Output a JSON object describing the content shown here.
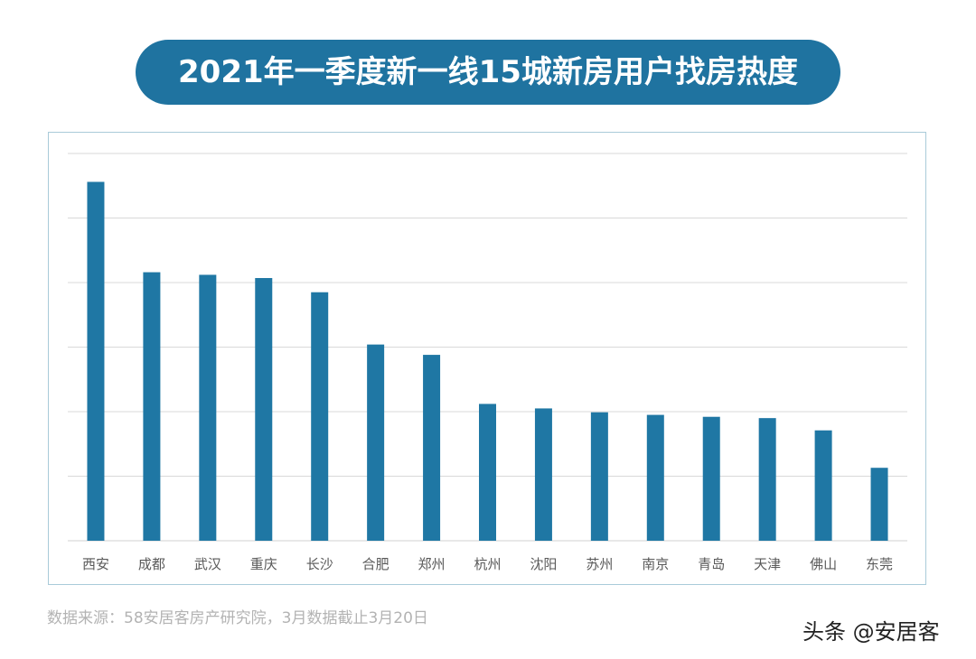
{
  "title": "2021年一季度新一线15城新房用户找房热度",
  "source_note": "数据来源：58安居客房产研究院，3月数据截止3月20日",
  "watermark": "头条 @安居客",
  "colors": {
    "title_background": "#1f73a0",
    "bar": "#1f77a4",
    "gridline": "#d9d9d9",
    "frame_border": "#a9cbd9"
  },
  "chart_data": {
    "type": "bar",
    "title": "2021年一季度新一线15城新房用户找房热度",
    "xlabel": "",
    "ylabel": "",
    "y_tick_labels_shown": false,
    "grid": true,
    "gridline_count": 6,
    "legend": "none",
    "ylim": [
      0,
      6
    ],
    "categories": [
      "西安",
      "成都",
      "武汉",
      "重庆",
      "长沙",
      "合肥",
      "郑州",
      "杭州",
      "沈阳",
      "苏州",
      "南京",
      "青岛",
      "天津",
      "佛山",
      "东莞"
    ],
    "values": [
      5.56,
      4.16,
      4.12,
      4.07,
      3.85,
      3.04,
      2.88,
      2.12,
      2.05,
      1.99,
      1.95,
      1.92,
      1.9,
      1.71,
      1.13
    ]
  }
}
